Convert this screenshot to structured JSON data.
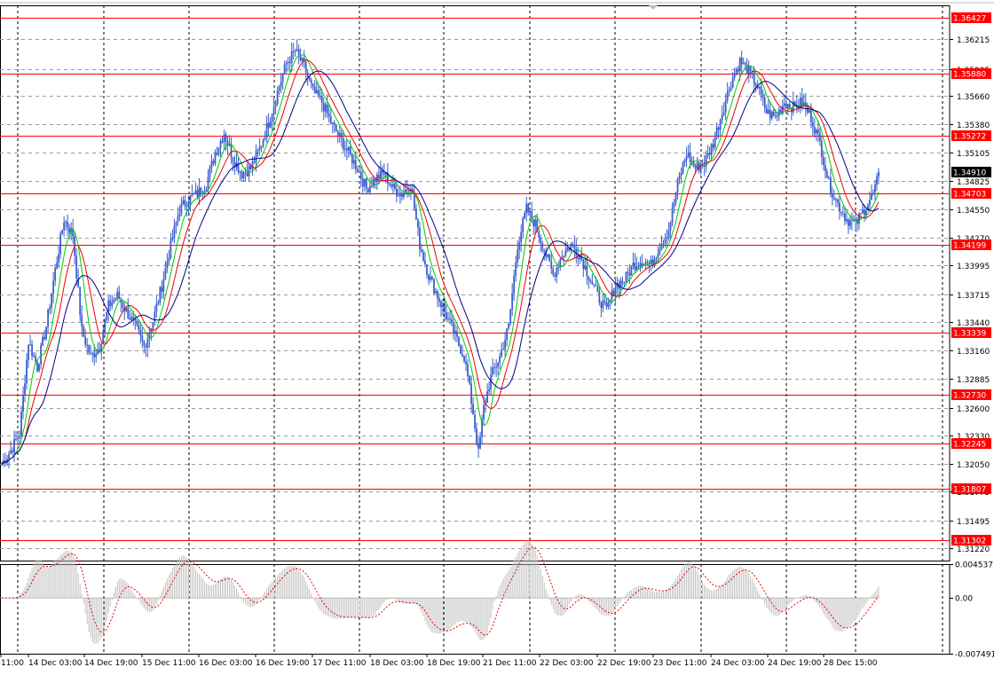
{
  "chart_data": [
    {
      "type": "candlestick",
      "panel": "price",
      "instrument": "",
      "title": "",
      "ylim": [
        1.311,
        1.3655
      ],
      "y_ticks": [
        "1.36215",
        "1.35925",
        "1.35660",
        "1.35380",
        "1.35105",
        "1.34825",
        "1.34550",
        "1.34270",
        "1.33995",
        "1.33715",
        "1.33440",
        "1.33160",
        "1.32885",
        "1.32600",
        "1.32330",
        "1.32050",
        "1.31775",
        "1.31495",
        "1.31220"
      ],
      "x_labels": [
        "11:00",
        "14 Dec 03:00",
        "14 Dec 19:00",
        "15 Dec 11:00",
        "16 Dec 03:00",
        "16 Dec 19:00",
        "17 Dec 11:00",
        "18 Dec 03:00",
        "18 Dec 19:00",
        "21 Dec 11:00",
        "22 Dec 03:00",
        "22 Dec 19:00",
        "23 Dec 11:00",
        "24 Dec 03:00",
        "24 Dec 19:00",
        "28 Dec 15:00"
      ],
      "current_price": "1.34910",
      "horizontal_levels": [
        "1.36427",
        "1.35880",
        "1.35272",
        "1.34703",
        "1.34199",
        "1.33339",
        "1.32730",
        "1.32245",
        "1.31807",
        "1.31302"
      ],
      "close_anchors": [
        [
          0,
          1.3205
        ],
        [
          5,
          1.3218
        ],
        [
          10,
          1.3235
        ],
        [
          15,
          1.3325
        ],
        [
          20,
          1.33
        ],
        [
          25,
          1.334
        ],
        [
          30,
          1.3395
        ],
        [
          35,
          1.3445
        ],
        [
          40,
          1.343
        ],
        [
          45,
          1.3335
        ],
        [
          50,
          1.331
        ],
        [
          55,
          1.332
        ],
        [
          60,
          1.336
        ],
        [
          65,
          1.337
        ],
        [
          70,
          1.3355
        ],
        [
          75,
          1.334
        ],
        [
          80,
          1.332
        ],
        [
          85,
          1.3345
        ],
        [
          90,
          1.338
        ],
        [
          95,
          1.342
        ],
        [
          100,
          1.3455
        ],
        [
          105,
          1.3465
        ],
        [
          110,
          1.347
        ],
        [
          115,
          1.348
        ],
        [
          120,
          1.351
        ],
        [
          125,
          1.353
        ],
        [
          130,
          1.3505
        ],
        [
          135,
          1.349
        ],
        [
          140,
          1.3495
        ],
        [
          145,
          1.3515
        ],
        [
          150,
          1.354
        ],
        [
          155,
          1.357
        ],
        [
          160,
          1.3598
        ],
        [
          165,
          1.361
        ],
        [
          170,
          1.3595
        ],
        [
          175,
          1.357
        ],
        [
          180,
          1.356
        ],
        [
          185,
          1.354
        ],
        [
          190,
          1.3525
        ],
        [
          195,
          1.351
        ],
        [
          200,
          1.3495
        ],
        [
          205,
          1.3475
        ],
        [
          210,
          1.3485
        ],
        [
          215,
          1.349
        ],
        [
          220,
          1.3475
        ],
        [
          225,
          1.347
        ],
        [
          230,
          1.348
        ],
        [
          235,
          1.342
        ],
        [
          240,
          1.339
        ],
        [
          245,
          1.337
        ],
        [
          250,
          1.335
        ],
        [
          255,
          1.333
        ],
        [
          260,
          1.331
        ],
        [
          262,
          1.329
        ],
        [
          265,
          1.3255
        ],
        [
          268,
          1.3215
        ],
        [
          271,
          1.326
        ],
        [
          275,
          1.329
        ],
        [
          280,
          1.331
        ],
        [
          285,
          1.334
        ],
        [
          290,
          1.342
        ],
        [
          295,
          1.3455
        ],
        [
          300,
          1.344
        ],
        [
          305,
          1.3415
        ],
        [
          310,
          1.339
        ],
        [
          315,
          1.341
        ],
        [
          320,
          1.342
        ],
        [
          325,
          1.341
        ],
        [
          330,
          1.339
        ],
        [
          335,
          1.337
        ],
        [
          340,
          1.3355
        ],
        [
          345,
          1.338
        ],
        [
          350,
          1.3385
        ],
        [
          355,
          1.34
        ],
        [
          360,
          1.3405
        ],
        [
          365,
          1.34
        ],
        [
          370,
          1.342
        ],
        [
          375,
          1.3435
        ],
        [
          380,
          1.348
        ],
        [
          385,
          1.351
        ],
        [
          390,
          1.3495
        ],
        [
          395,
          1.35
        ],
        [
          400,
          1.352
        ],
        [
          405,
          1.355
        ],
        [
          410,
          1.358
        ],
        [
          415,
          1.36
        ],
        [
          420,
          1.359
        ],
        [
          425,
          1.3575
        ],
        [
          430,
          1.355
        ],
        [
          435,
          1.3545
        ],
        [
          440,
          1.356
        ],
        [
          445,
          1.3555
        ],
        [
          450,
          1.356
        ],
        [
          455,
          1.3545
        ],
        [
          460,
          1.352
        ],
        [
          465,
          1.348
        ],
        [
          470,
          1.346
        ],
        [
          475,
          1.3445
        ],
        [
          480,
          1.344
        ],
        [
          485,
          1.3455
        ],
        [
          490,
          1.347
        ],
        [
          493,
          1.3487
        ]
      ],
      "moving_averages": [
        {
          "name": "",
          "period": 8,
          "color": "#00cc00"
        },
        {
          "name": "",
          "period": 14,
          "color": "#ee0000"
        },
        {
          "name": "",
          "period": 24,
          "color": "#00008b"
        }
      ],
      "colors": {
        "candle": "#3a5fcd",
        "level_line": "#ff0000",
        "grid": "#8a8a8a",
        "label_bg": "#ff0000",
        "current_bg": "#000000"
      }
    },
    {
      "type": "histogram",
      "panel": "oscillator",
      "ylim": [
        -0.007491,
        0.004537
      ],
      "y_ticks": [
        "0.004537",
        "0.00",
        "-0.007491"
      ],
      "signal_line": {
        "style": "dotted",
        "color": "#ee0000"
      },
      "colors": {
        "bar": "#c0c0c0",
        "zero": "#000000"
      }
    }
  ]
}
